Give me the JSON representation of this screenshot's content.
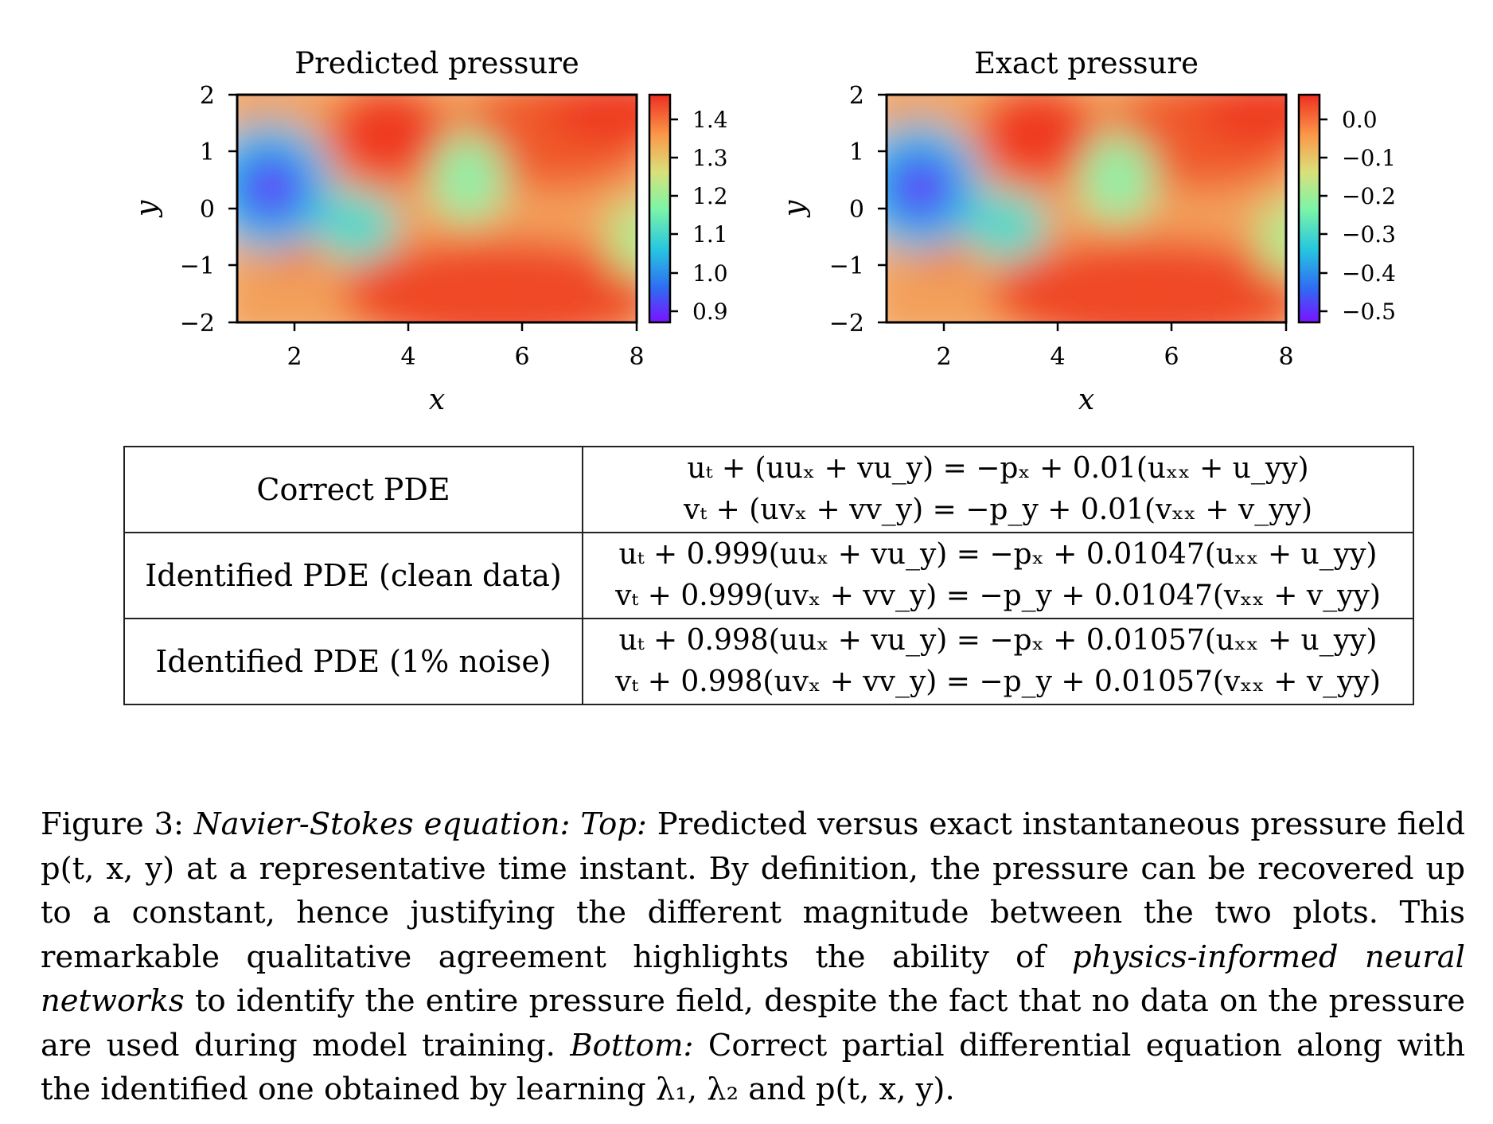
{
  "plots": [
    {
      "title": "Predicted pressure",
      "xlabel": "x",
      "ylabel": "y",
      "xticks": [
        "2",
        "4",
        "6",
        "8"
      ],
      "yticks": [
        "2",
        "1",
        "0",
        "−1",
        "−2"
      ],
      "colorbar_ticks": [
        "1.4",
        "1.3",
        "1.2",
        "1.1",
        "1.0",
        "0.9"
      ]
    },
    {
      "title": "Exact pressure",
      "xlabel": "x",
      "ylabel": "y",
      "xticks": [
        "2",
        "4",
        "6",
        "8"
      ],
      "yticks": [
        "2",
        "1",
        "0",
        "−1",
        "−2"
      ],
      "colorbar_ticks": [
        "0.0",
        "−0.1",
        "−0.2",
        "−0.3",
        "−0.4",
        "−0.5"
      ]
    }
  ],
  "table": {
    "rows": [
      {
        "label": "Correct PDE",
        "eq1": "uₜ + (uuₓ + vu_y) = −pₓ + 0.01(uₓₓ + u_yy)",
        "eq2": "vₜ + (uvₓ + vv_y) = −p_y + 0.01(vₓₓ + v_yy)"
      },
      {
        "label": "Identified PDE (clean data)",
        "eq1": "uₜ + 0.999(uuₓ + vu_y) = −pₓ + 0.01047(uₓₓ + u_yy)",
        "eq2": "vₜ + 0.999(uvₓ + vv_y) = −p_y + 0.01047(vₓₓ + v_yy)"
      },
      {
        "label": "Identified PDE (1% noise)",
        "eq1": "uₜ + 0.998(uuₓ + vu_y) = −pₓ + 0.01057(uₓₓ + u_yy)",
        "eq2": "vₜ + 0.998(uvₓ + vv_y) = −p_y + 0.01057(vₓₓ + v_yy)"
      }
    ]
  },
  "caption": {
    "label": "Figure 3:",
    "title": "Navier-Stokes equation:",
    "top_label": "Top:",
    "text1": "Predicted versus exact instantaneous pressure field p(t, x, y) at a representative time instant. By definition, the pressure can be recovered up to a constant, hence justifying the different magnitude between the two plots. This remarkable qualitative agreement highlights the ability of",
    "pinn": "physics-informed neural networks",
    "text2": "to identify the entire pressure field, despite the fact that no data on the pressure are used during model training.",
    "bottom_label": "Bottom:",
    "text3": "Correct partial differential equation along with the identified one obtained by learning λ₁, λ₂ and p(t, x, y)."
  }
}
